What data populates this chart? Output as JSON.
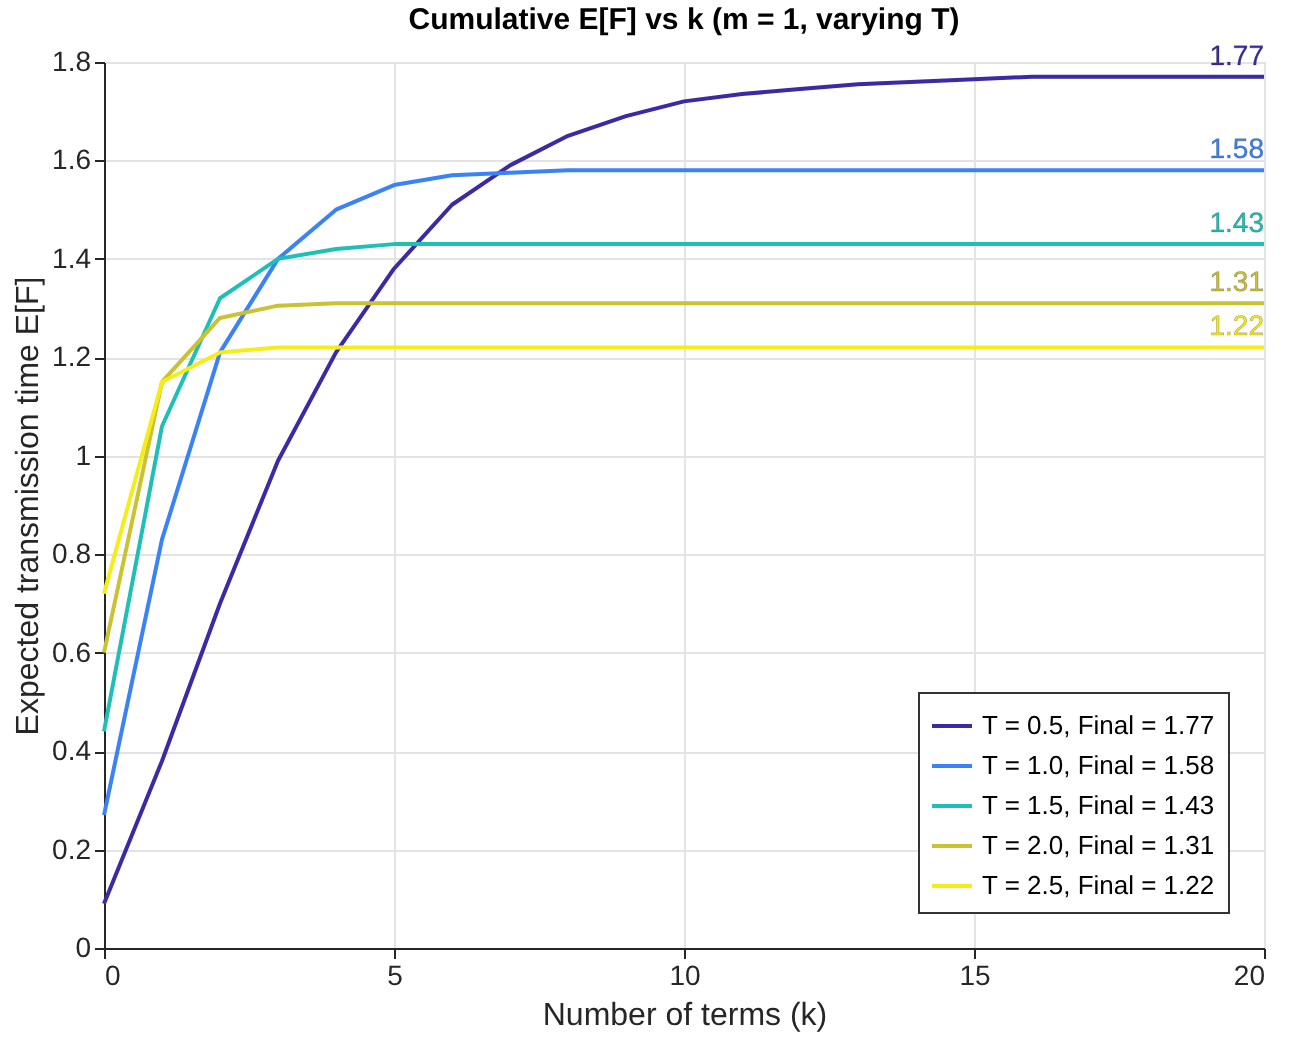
{
  "chart_data": {
    "type": "line",
    "title": "Cumulative E[F] vs k (m = 1, varying T)",
    "xlabel": "Number of terms (k)",
    "ylabel": "Expected transmission time E[F]",
    "x": [
      0,
      1,
      2,
      3,
      4,
      5,
      6,
      7,
      8,
      9,
      10,
      11,
      12,
      13,
      14,
      15,
      16,
      17,
      18,
      19,
      20
    ],
    "series": [
      {
        "name": "T = 0.5, Final = 1.77",
        "color": "#3b2aa3",
        "values": [
          0.09,
          0.38,
          0.7,
          0.99,
          1.21,
          1.38,
          1.51,
          1.59,
          1.65,
          1.69,
          1.72,
          1.735,
          1.745,
          1.755,
          1.76,
          1.765,
          1.77,
          1.77,
          1.77,
          1.77,
          1.77
        ]
      },
      {
        "name": "T = 1.0, Final = 1.58",
        "color": "#3a82f7",
        "values": [
          0.27,
          0.83,
          1.21,
          1.4,
          1.5,
          1.55,
          1.57,
          1.575,
          1.58,
          1.58,
          1.58,
          1.58,
          1.58,
          1.58,
          1.58,
          1.58,
          1.58,
          1.58,
          1.58,
          1.58,
          1.58
        ]
      },
      {
        "name": "T = 1.5, Final = 1.43",
        "color": "#1fbfb8",
        "values": [
          0.44,
          1.06,
          1.32,
          1.4,
          1.42,
          1.43,
          1.43,
          1.43,
          1.43,
          1.43,
          1.43,
          1.43,
          1.43,
          1.43,
          1.43,
          1.43,
          1.43,
          1.43,
          1.43,
          1.43,
          1.43
        ]
      },
      {
        "name": "T = 2.0, Final = 1.31",
        "color": "#c9c232",
        "values": [
          0.6,
          1.15,
          1.28,
          1.305,
          1.31,
          1.31,
          1.31,
          1.31,
          1.31,
          1.31,
          1.31,
          1.31,
          1.31,
          1.31,
          1.31,
          1.31,
          1.31,
          1.31,
          1.31,
          1.31,
          1.31
        ]
      },
      {
        "name": "T = 2.5, Final = 1.22",
        "color": "#f5ed1a",
        "values": [
          0.72,
          1.15,
          1.21,
          1.22,
          1.22,
          1.22,
          1.22,
          1.22,
          1.22,
          1.22,
          1.22,
          1.22,
          1.22,
          1.22,
          1.22,
          1.22,
          1.22,
          1.22,
          1.22,
          1.22,
          1.22
        ]
      }
    ],
    "annotations": [
      "1.77",
      "1.58",
      "1.43",
      "1.31",
      "1.22"
    ],
    "xlim": [
      0,
      20
    ],
    "xticks": [
      0,
      5,
      10,
      15,
      20
    ],
    "ylim": [
      0,
      1.8
    ],
    "yticks": [
      0,
      0.2,
      0.4,
      0.6,
      0.8,
      1,
      1.2,
      1.4,
      1.6,
      1.8
    ],
    "grid": true,
    "legend": "bottom right",
    "marker": "none",
    "line_style": "solid"
  }
}
